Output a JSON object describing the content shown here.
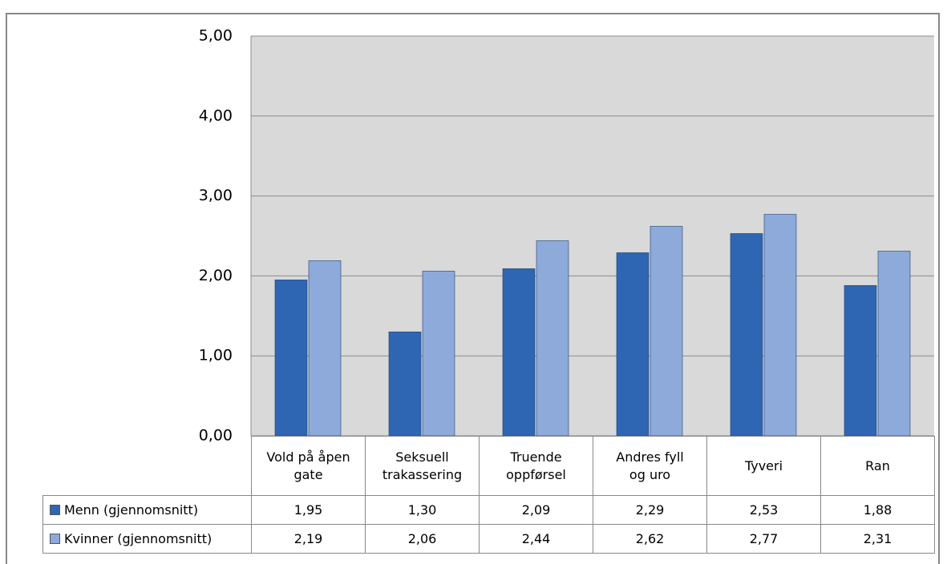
{
  "chart_data": {
    "type": "bar",
    "categories": [
      "Vold på åpen gate",
      "Seksuell trakassering",
      "Truende oppførsel",
      "Andres fyll og uro",
      "Tyveri",
      "Ran"
    ],
    "series": [
      {
        "name": "Menn (gjennomsnitt)",
        "color": "#2f66b3",
        "values": [
          1.95,
          1.3,
          2.09,
          2.29,
          2.53,
          1.88
        ],
        "value_labels": [
          "1,95",
          "1,30",
          "2,09",
          "2,29",
          "2,53",
          "1,88"
        ]
      },
      {
        "name": "Kvinner (gjennomsnitt)",
        "color": "#8eaadb",
        "values": [
          2.19,
          2.06,
          2.44,
          2.62,
          2.77,
          2.31
        ],
        "value_labels": [
          "2,19",
          "2,06",
          "2,44",
          "2,62",
          "2,77",
          "2,31"
        ]
      }
    ],
    "ylim": [
      0,
      5
    ],
    "yticks": [
      {
        "value": 0,
        "label": "0,00"
      },
      {
        "value": 1,
        "label": "1,00"
      },
      {
        "value": 2,
        "label": "2,00"
      },
      {
        "value": 3,
        "label": "3,00"
      },
      {
        "value": 4,
        "label": "4,00"
      },
      {
        "value": 5,
        "label": "5,00"
      }
    ],
    "grid": true,
    "data_table": true
  }
}
